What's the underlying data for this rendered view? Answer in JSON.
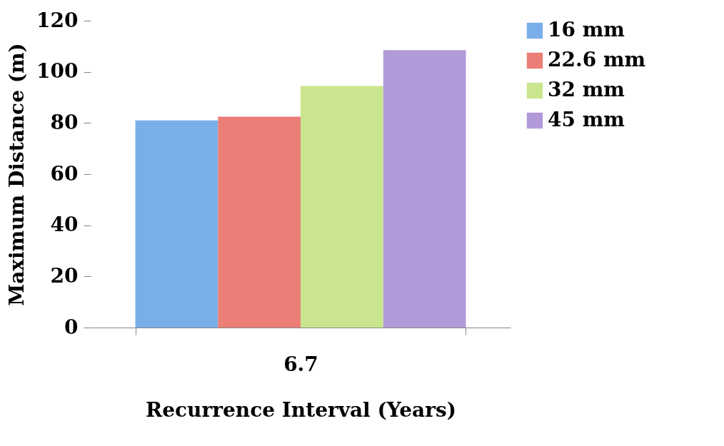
{
  "chart_data": {
    "type": "bar",
    "xlabel": "Recurrence Interval (Years)",
    "ylabel": "Maximum Distance (m)",
    "categories": [
      "6.7"
    ],
    "series": [
      {
        "name": "16 mm",
        "color": "#79aeea",
        "values": [
          81
        ]
      },
      {
        "name": "22.6 mm",
        "color": "#eb7e76",
        "values": [
          82.5
        ]
      },
      {
        "name": "32 mm",
        "color": "#c9e68e",
        "values": [
          94.5
        ]
      },
      {
        "name": "45 mm",
        "color": "#b29ad8",
        "values": [
          108.5
        ]
      }
    ],
    "ylim": [
      0,
      120
    ],
    "yticks": [
      0,
      20,
      40,
      60,
      80,
      100,
      120
    ],
    "grid": false,
    "legend": "right"
  }
}
